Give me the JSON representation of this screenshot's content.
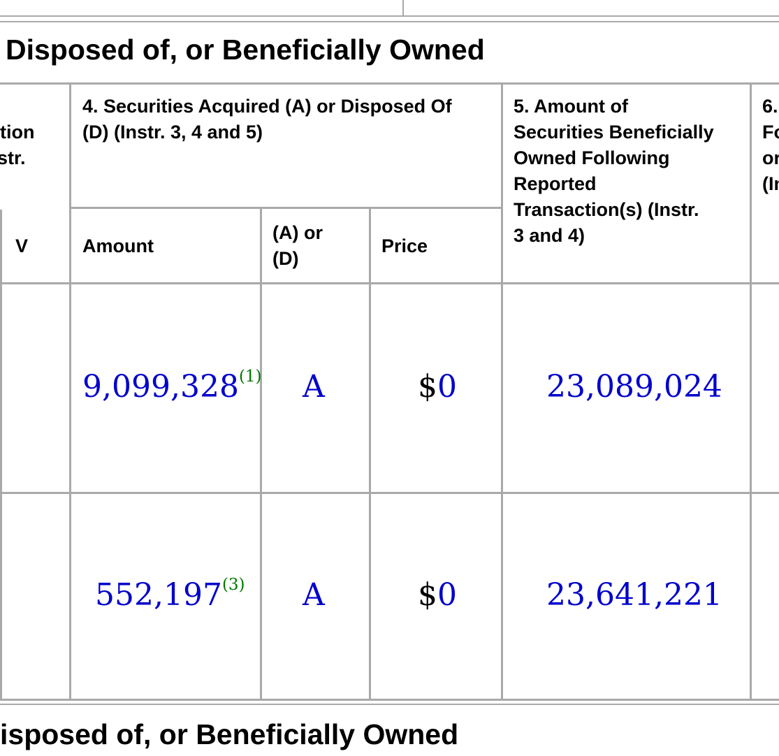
{
  "section_title_top": "Disposed of, or Beneficially Owned",
  "section_title_bottom": "isposed of, or Beneficially Owned",
  "headers": {
    "col3_partial_line1": "tion",
    "col3_partial_line2": "str.",
    "v": "V",
    "col4_lines": [
      "4. Securities Acquired (A) or Disposed Of",
      "(D) (Instr. 3, 4 and 5)"
    ],
    "amount": "Amount",
    "a_or_d_lines": [
      "(A) or",
      "(D)"
    ],
    "price": "Price",
    "col5_lines": [
      "5. Amount of",
      "Securities Beneficially",
      "Owned Following",
      "Reported",
      "Transaction(s) (Instr.",
      "3 and 4)"
    ],
    "col6_partial_lines": [
      "6.",
      "Fo",
      "or",
      "(In"
    ]
  },
  "rows": [
    {
      "amount": "9,099,328",
      "footnote": "(1)",
      "a_or_d": "A",
      "price_symbol": "$",
      "price_value": "0",
      "owned_following": "23,089,024"
    },
    {
      "amount": "552,197",
      "footnote": "(3)",
      "a_or_d": "A",
      "price_symbol": "$",
      "price_value": "0",
      "owned_following": "23,641,221"
    }
  ]
}
